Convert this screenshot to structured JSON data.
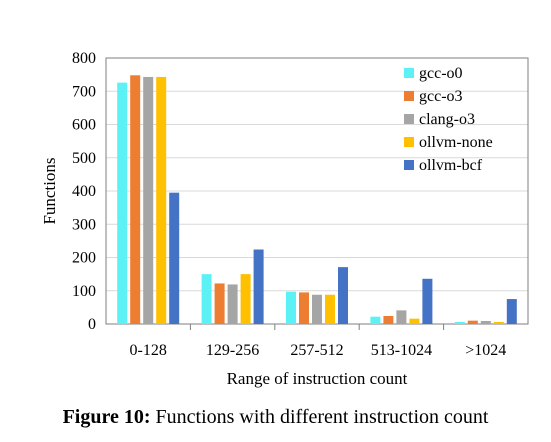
{
  "caption": {
    "label": "Figure 10:",
    "text": " Functions with different instruction count"
  },
  "chart_data": {
    "type": "bar",
    "title": "",
    "xlabel": "Range of instruction count",
    "ylabel": "Functions",
    "categories": [
      "0-128",
      "129-256",
      "257-512",
      "513-1024",
      ">1024"
    ],
    "ylim": [
      0,
      800
    ],
    "yticks": [
      0,
      100,
      200,
      300,
      400,
      500,
      600,
      700,
      800
    ],
    "grid": true,
    "legend_position": "top-right",
    "series": [
      {
        "name": "gcc-o0",
        "color": "#5CF2F5",
        "values": [
          726,
          150,
          97,
          22,
          6
        ]
      },
      {
        "name": "gcc-o3",
        "color": "#ED7D31",
        "values": [
          748,
          122,
          95,
          24,
          10
        ]
      },
      {
        "name": "clang-o3",
        "color": "#A5A5A5",
        "values": [
          743,
          119,
          88,
          41,
          9
        ]
      },
      {
        "name": "ollvm-none",
        "color": "#FFC000",
        "values": [
          743,
          150,
          88,
          16,
          6
        ]
      },
      {
        "name": "ollvm-bcf",
        "color": "#4472C4",
        "values": [
          395,
          224,
          171,
          136,
          75
        ]
      }
    ]
  }
}
